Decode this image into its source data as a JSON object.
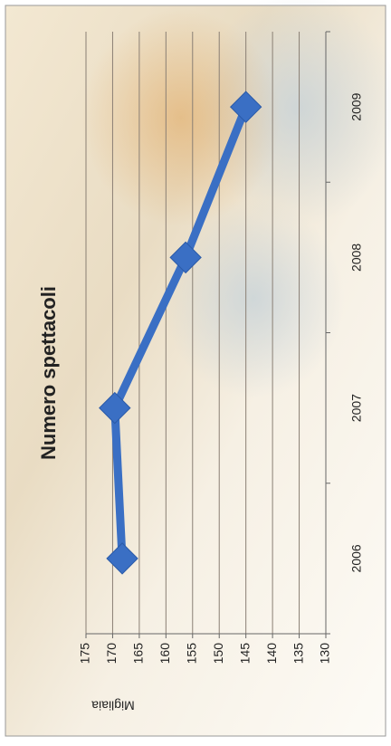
{
  "chart_data": {
    "type": "line",
    "title": "Numero spettacoli",
    "y_label": "Migliaia",
    "categories": [
      "2006",
      "2007",
      "2008",
      "2009"
    ],
    "values": [
      168.2,
      169.6,
      156.3,
      145
    ],
    "color": "#3a6fc4",
    "ylim": [
      130,
      175
    ],
    "yticks": [
      130,
      135,
      140,
      145,
      150,
      155,
      160,
      165,
      170,
      175
    ],
    "grid": true
  }
}
